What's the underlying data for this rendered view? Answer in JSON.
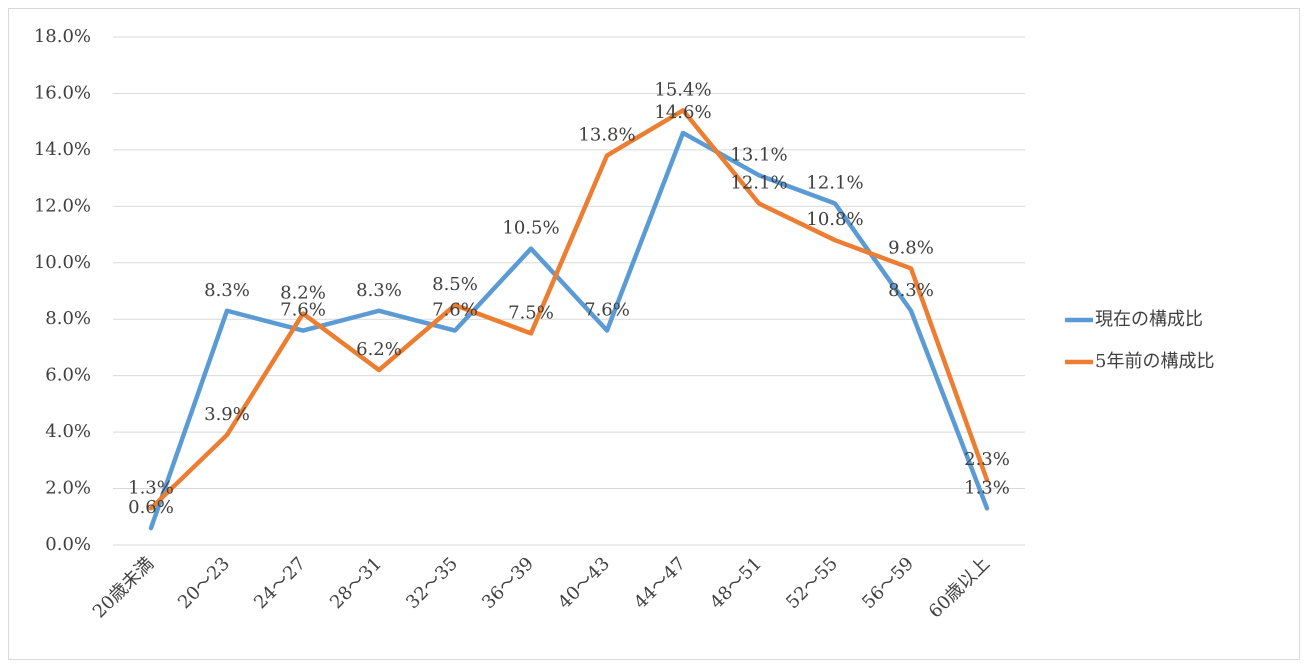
{
  "chart_data": {
    "type": "line",
    "categories": [
      "20歳未満",
      "20～23",
      "24～27",
      "28～31",
      "32～35",
      "36～39",
      "40～43",
      "44～47",
      "48～51",
      "52～55",
      "56～59",
      "60歳以上"
    ],
    "series": [
      {
        "name": "現在の構成比",
        "color": "#5b9bd5",
        "values": [
          0.6,
          8.3,
          7.6,
          8.3,
          7.6,
          10.5,
          7.6,
          14.6,
          13.1,
          12.1,
          8.3,
          1.3
        ],
        "value_labels": [
          "0.6%",
          "8.3%",
          "7.6%",
          "8.3%",
          "7.6%",
          "10.5%",
          "7.6%",
          "14.6%",
          "13.1%",
          "12.1%",
          "8.3%",
          "1.3%"
        ]
      },
      {
        "name": "5年前の構成比",
        "color": "#ed7d31",
        "values": [
          1.3,
          3.9,
          8.2,
          6.2,
          8.5,
          7.5,
          13.8,
          15.4,
          12.1,
          10.8,
          9.8,
          2.3
        ],
        "value_labels": [
          "1.3%",
          "3.9%",
          "8.2%",
          "6.2%",
          "8.5%",
          "7.5%",
          "13.8%",
          "15.4%",
          "12.1%",
          "10.8%",
          "9.8%",
          "2.3%"
        ]
      }
    ],
    "ylim": [
      0,
      18
    ],
    "yticks": [
      {
        "value": 0,
        "label": "0.0%"
      },
      {
        "value": 2,
        "label": "2.0%"
      },
      {
        "value": 4,
        "label": "4.0%"
      },
      {
        "value": 6,
        "label": "6.0%"
      },
      {
        "value": 8,
        "label": "8.0%"
      },
      {
        "value": 10,
        "label": "10.0%"
      },
      {
        "value": 12,
        "label": "12.0%"
      },
      {
        "value": 14,
        "label": "14.0%"
      },
      {
        "value": 16,
        "label": "16.0%"
      },
      {
        "value": 18,
        "label": "18.0%"
      }
    ],
    "grid": true,
    "legend": "right"
  }
}
